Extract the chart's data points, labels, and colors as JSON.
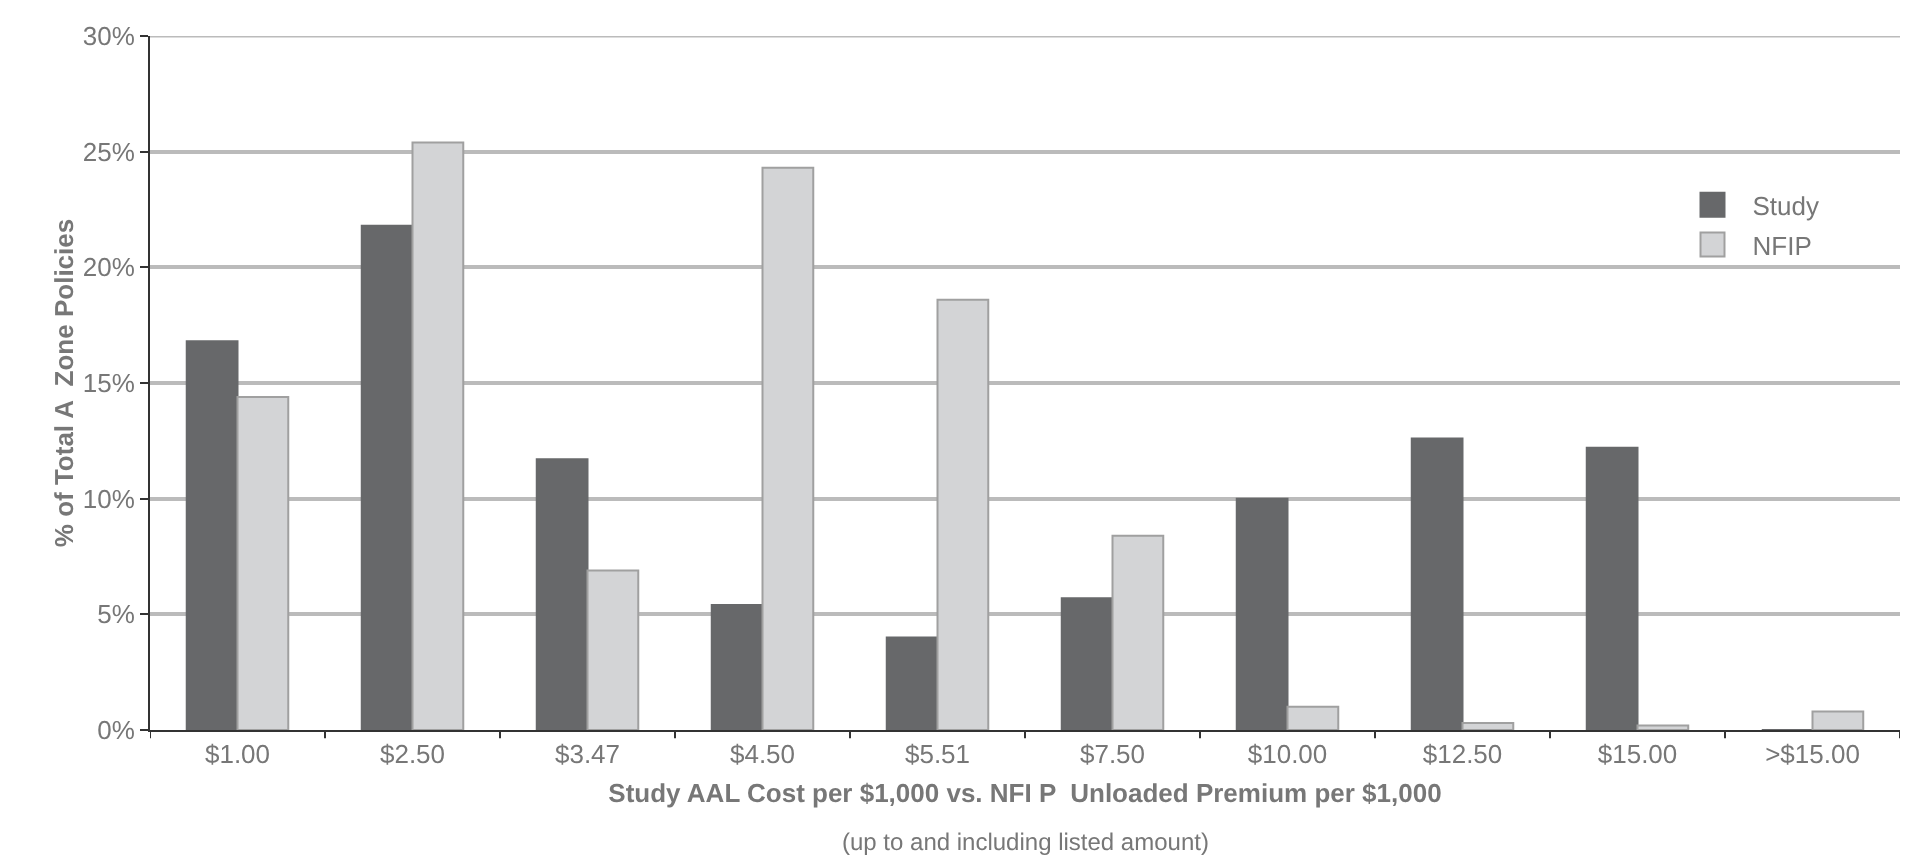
{
  "chart_data": {
    "type": "bar",
    "categories": [
      "$1.00",
      "$2.50",
      "$3.47",
      "$4.50",
      "$5.51",
      "$7.50",
      "$10.00",
      "$12.50",
      "$15.00",
      ">$15.00"
    ],
    "series": [
      {
        "name": "Study",
        "color": "#67686a",
        "values": [
          16.8,
          21.8,
          11.7,
          5.4,
          4.0,
          5.7,
          10.0,
          12.6,
          12.2,
          0
        ]
      },
      {
        "name": "NFIP",
        "color": "#d3d4d6",
        "values": [
          14.4,
          25.4,
          6.9,
          24.3,
          18.6,
          8.4,
          1.0,
          0.3,
          0.2,
          0.8
        ]
      }
    ],
    "xlabel": "Study AAL Cost per $1,000 vs. NFI P  Unloaded Premium per $1,000",
    "ylabel": "% of Total A  Zone Policies",
    "annotations": [
      "(up to and including listed amount)"
    ],
    "ylim": [
      0,
      30
    ],
    "yticks": [
      {
        "value": 0,
        "label": "0%"
      },
      {
        "value": 5,
        "label": "5%"
      },
      {
        "value": 10,
        "label": "10%"
      },
      {
        "value": 15,
        "label": "15%"
      },
      {
        "value": 20,
        "label": "20%"
      },
      {
        "value": 25,
        "label": "25%"
      },
      {
        "value": 30,
        "label": "30%"
      }
    ],
    "grid": "y",
    "legend": "top right"
  }
}
